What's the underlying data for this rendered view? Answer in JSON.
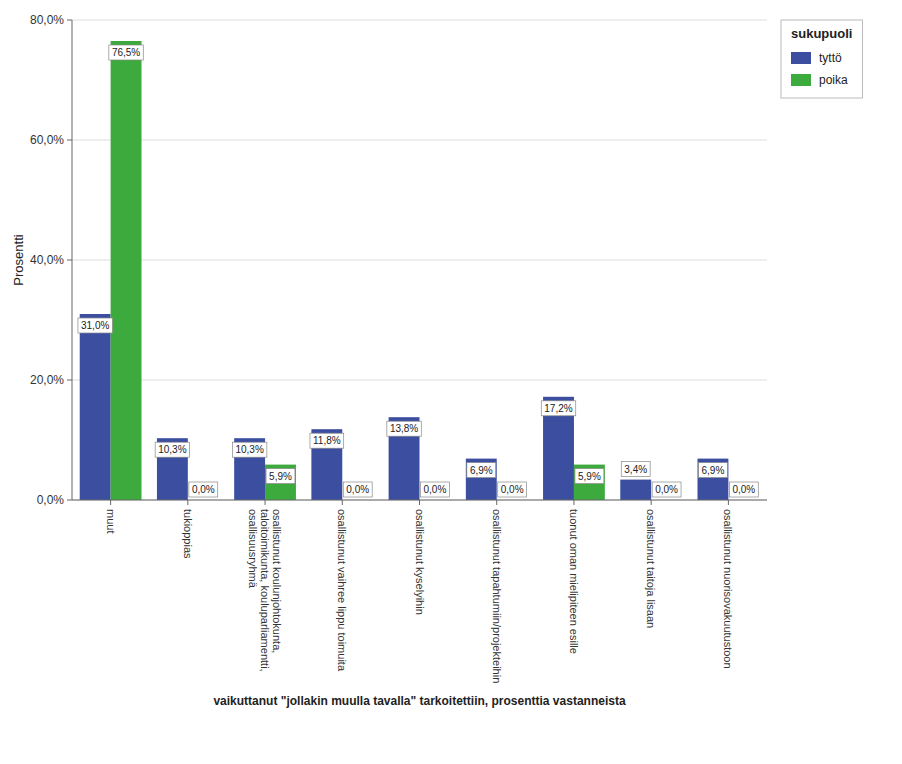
{
  "chart_data": {
    "type": "bar",
    "categories": [
      "muut",
      "tukioppias",
      "osallistunut koulunjohtokunta,\ntaloitoimikunta, kouluparliamentti,\nosallisuusryhmä",
      "osallistunut vaihree lippu toimuita",
      "osallistunut kyselyihin",
      "osallistunut tapahtumiin/projekteihin",
      "tuonut oman mielipiteen esille",
      "osallistunut taitoja lisaan",
      "osallistunut nuorisovakuutustoon"
    ],
    "series": [
      {
        "name": "tyttö",
        "color": "#3B4EA0",
        "values": [
          31.0,
          10.3,
          10.3,
          11.8,
          13.8,
          6.9,
          17.2,
          3.4,
          6.9
        ],
        "value_labels": [
          "31,0%",
          "10,3%",
          "10,3%",
          "11,8%",
          "13,8%",
          "6,9%",
          "17,2%",
          "3,4%",
          "6,9%"
        ]
      },
      {
        "name": "poika",
        "color": "#3DAA3D",
        "values": [
          76.5,
          0.0,
          5.9,
          0.0,
          0.0,
          0.0,
          5.9,
          0.0,
          0.0
        ],
        "value_labels": [
          "76,5%",
          "0,0%",
          "5,9%",
          "0,0%",
          "0,0%",
          "0,0%",
          "5,9%",
          "0,0%",
          "0,0%"
        ]
      }
    ],
    "xlabel": "vaikuttanut \"jollakin muulla tavalla\" tarkoitettiin, prosenttia vastanneista",
    "ylabel": "Prosentti",
    "legend_title": "sukupuoli",
    "ylim": [
      0,
      80
    ],
    "yticks": [
      {
        "value": 0,
        "label": "0,0%"
      },
      {
        "value": 20,
        "label": "20,0%"
      },
      {
        "value": 40,
        "label": "40,0%"
      },
      {
        "value": 60,
        "label": "60,0%"
      },
      {
        "value": 80,
        "label": "80,0%"
      }
    ],
    "grid": true,
    "legend": "right",
    "data_labels": true
  }
}
